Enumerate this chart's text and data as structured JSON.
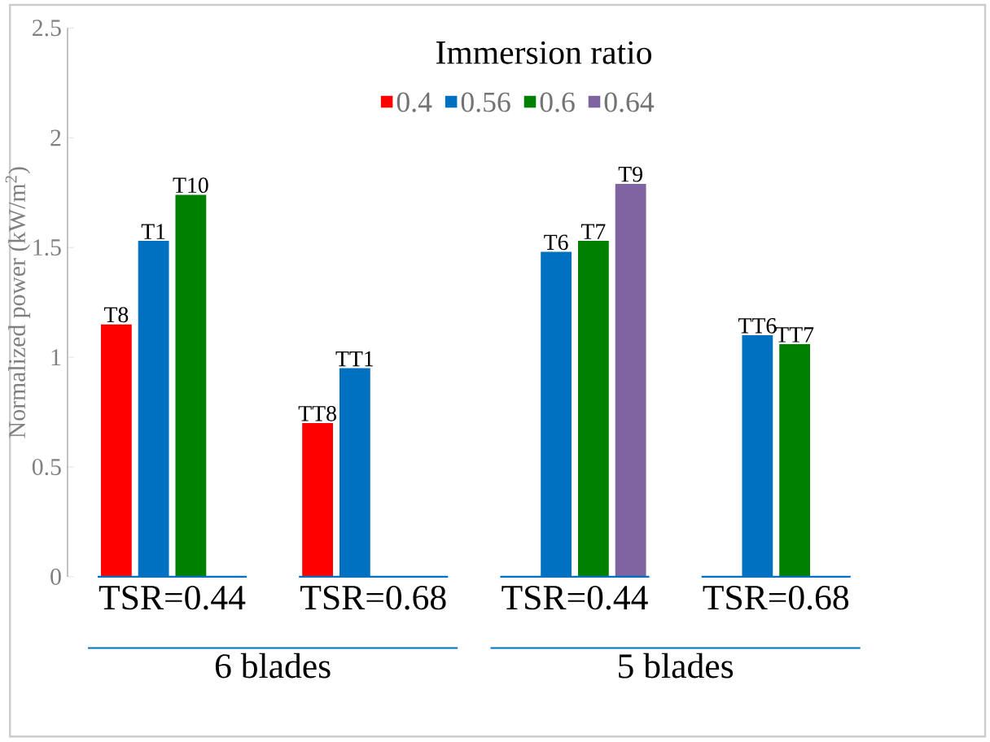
{
  "chart_data": {
    "type": "bar",
    "ylabel": "Normalized power (kW/m$^{2}$)",
    "legend_title": "Immersion ratio",
    "legend": "top",
    "categories": [
      "TSR=0.44",
      "TSR=0.68",
      "TSR=0.44",
      "TSR=0.68"
    ],
    "ylim": [
      0,
      2.5
    ],
    "yticks": [
      0,
      0.5,
      1,
      1.5,
      2,
      2.5
    ],
    "series": [
      {
        "name": "0.4",
        "color": "#ff0000",
        "values": [
          1.15,
          0.7,
          null,
          null
        ],
        "value_labels": [
          "T8",
          "TT8",
          null,
          null
        ]
      },
      {
        "name": "0.56",
        "color": "#0070c0",
        "values": [
          1.53,
          0.95,
          1.48,
          1.1
        ],
        "value_labels": [
          "T1",
          "TT1",
          "T6",
          "TT6"
        ]
      },
      {
        "name": "0.6",
        "color": "#008000",
        "values": [
          1.74,
          null,
          1.53,
          1.06
        ],
        "value_labels": [
          "T10",
          null,
          "T7",
          "TT7"
        ]
      },
      {
        "name": "0.64",
        "color": "#8064a2",
        "values": [
          null,
          null,
          1.79,
          null
        ],
        "value_labels": [
          null,
          null,
          "T9",
          null
        ]
      }
    ],
    "annotations": [
      "6 blades",
      "5 blades"
    ]
  }
}
